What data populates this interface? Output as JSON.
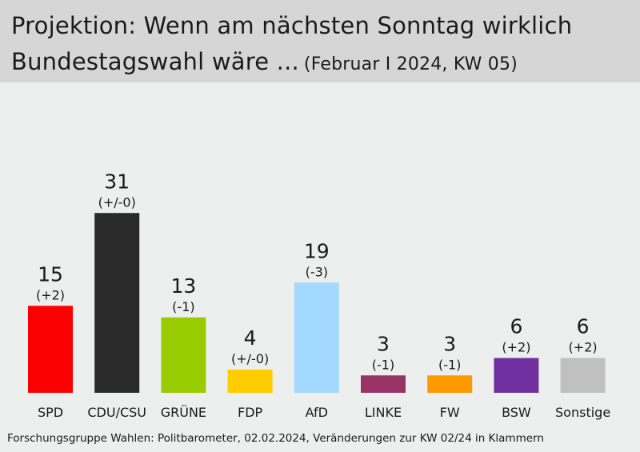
{
  "header": {
    "title_line1": "Projektion: Wenn am nächsten Sonntag wirklich",
    "title_line2": "Bundestagswahl wäre ...",
    "subtitle": "(Februar I 2024, KW 05)"
  },
  "footer": {
    "source": "Forschungsgruppe Wahlen: Politbarometer, 02.02.2024, Veränderungen zur KW 02/24 in Klammern"
  },
  "chart_data": {
    "type": "bar",
    "title": "Projektion: Wenn am nächsten Sonntag wirklich Bundestagswahl wäre ...",
    "subtitle": "(Februar I 2024, KW 05)",
    "categories": [
      "SPD",
      "CDU/CSU",
      "GRÜNE",
      "FDP",
      "AfD",
      "LINKE",
      "FW",
      "BSW",
      "Sonstige"
    ],
    "values": [
      15,
      31,
      13,
      4,
      19,
      3,
      3,
      6,
      6
    ],
    "changes": [
      "(+2)",
      "(+/-0)",
      "(-1)",
      "(+/-0)",
      "(-3)",
      "(-1)",
      "(-1)",
      "(+2)",
      "(+2)"
    ],
    "colors": [
      "#fb0000",
      "#2a2a2a",
      "#99cc00",
      "#ffcc00",
      "#a3d9ff",
      "#993366",
      "#ff9900",
      "#7030a0",
      "#c0c0c0"
    ],
    "grid": false,
    "legend": "none"
  }
}
